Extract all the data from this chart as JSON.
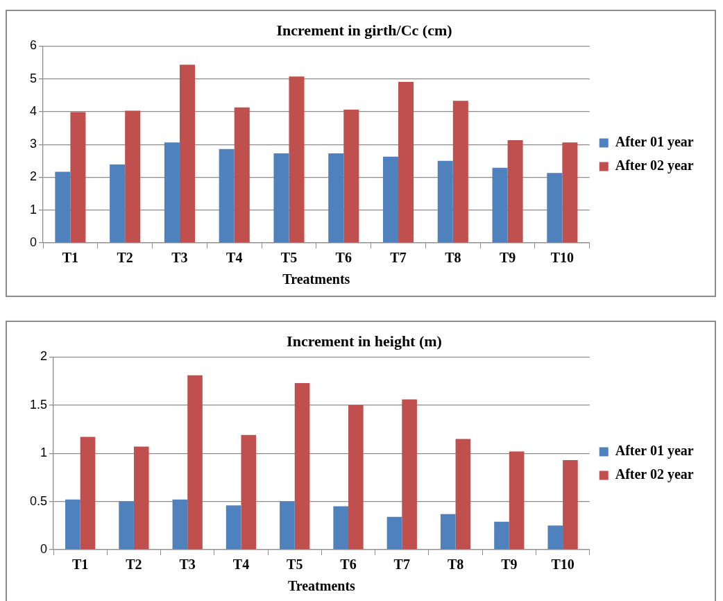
{
  "chart_data": [
    {
      "type": "bar",
      "title": "Increment in girth/Cc (cm)",
      "xlabel": "Treatments",
      "categories": [
        "T1",
        "T2",
        "T3",
        "T4",
        "T5",
        "T6",
        "T7",
        "T8",
        "T9",
        "T10"
      ],
      "series": [
        {
          "name": "After 01 year",
          "color": "#4f81bd",
          "values": [
            2.17,
            2.39,
            3.06,
            2.86,
            2.73,
            2.73,
            2.63,
            2.5,
            2.29,
            2.13
          ]
        },
        {
          "name": "After 02 year",
          "color": "#c0504d",
          "values": [
            3.99,
            4.03,
            5.43,
            4.13,
            5.07,
            4.06,
            4.91,
            4.33,
            3.13,
            3.06
          ]
        }
      ],
      "ylim": [
        0,
        6
      ],
      "yticks": [
        0,
        1,
        2,
        3,
        4,
        5,
        6
      ],
      "grid": "y",
      "legend": "right"
    },
    {
      "type": "bar",
      "title": "Increment in height (m)",
      "xlabel": "Treatments",
      "categories": [
        "T1",
        "T2",
        "T3",
        "T4",
        "T5",
        "T6",
        "T7",
        "T8",
        "T9",
        "T10"
      ],
      "series": [
        {
          "name": "After 01 year",
          "color": "#4f81bd",
          "values": [
            0.52,
            0.5,
            0.52,
            0.46,
            0.5,
            0.45,
            0.34,
            0.37,
            0.29,
            0.25
          ]
        },
        {
          "name": "After 02 year",
          "color": "#c0504d",
          "values": [
            1.17,
            1.07,
            1.81,
            1.19,
            1.73,
            1.5,
            1.56,
            1.15,
            1.02,
            0.93
          ]
        }
      ],
      "ylim": [
        0,
        2
      ],
      "yticks": [
        0,
        {
          "value": 0.5,
          "label": "0.5"
        },
        1,
        {
          "value": 1.5,
          "label": "1.5"
        },
        2
      ],
      "grid": "y",
      "legend": "right"
    }
  ]
}
